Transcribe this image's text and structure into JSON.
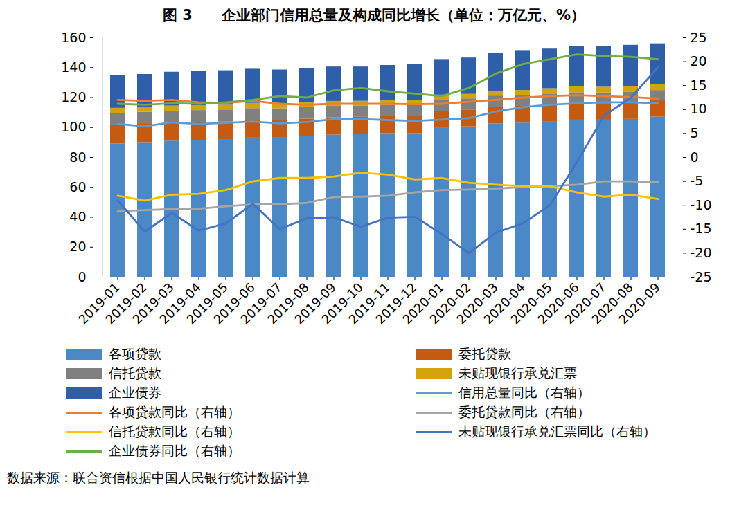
{
  "chart_data": {
    "type": "bar",
    "title": "图 3　　企业部门信用总量及构成同比增长（单位：万亿元、%）",
    "caption": "数据来源：联合资信根据中国人民银行统计数据计算",
    "stacked": true,
    "grid": false,
    "legend": "bottom",
    "categories": [
      "2019-01",
      "2019-02",
      "2019-03",
      "2019-04",
      "2019-05",
      "2019-06",
      "2019-07",
      "2019-08",
      "2019-09",
      "2019-10",
      "2019-11",
      "2019-12",
      "2020-01",
      "2020-02",
      "2020-03",
      "2020-04",
      "2020-05",
      "2020-06",
      "2020-07",
      "2020-08",
      "2020-09"
    ],
    "ylim": [
      0,
      160
    ],
    "yticks": [
      0,
      20,
      40,
      60,
      80,
      100,
      120,
      140,
      160
    ],
    "y2lim": [
      -25,
      25
    ],
    "y2ticks": [
      -25,
      -20,
      -15,
      -10,
      -5,
      0,
      5,
      10,
      15,
      20,
      25
    ],
    "series": [
      {
        "name": "各项贷款",
        "type": "bar",
        "color": "#4a89c5",
        "values": [
          89,
          90,
          91,
          91.5,
          92,
          93,
          93,
          94,
          95,
          95.5,
          96,
          96,
          99.5,
          100.5,
          102.5,
          103,
          104,
          105,
          105,
          105.5,
          107
        ]
      },
      {
        "name": "委托贷款",
        "type": "bar",
        "color": "#c55a11",
        "values": [
          12.3,
          12.2,
          12.1,
          12,
          11.9,
          11.8,
          11.7,
          11.6,
          11.5,
          11.4,
          11.4,
          11.4,
          11.3,
          11.3,
          11.2,
          11.2,
          11.1,
          11.1,
          11.0,
          11.0,
          10.9
        ]
      },
      {
        "name": "信托贷款",
        "type": "bar",
        "color": "#808080",
        "values": [
          8.0,
          8.0,
          7.9,
          7.9,
          7.9,
          7.9,
          7.8,
          7.8,
          7.7,
          7.6,
          7.6,
          7.5,
          7.5,
          7.4,
          7.4,
          7.3,
          7.3,
          7.2,
          7.1,
          7.0,
          6.9
        ]
      },
      {
        "name": "未贴现银行承兑汇票",
        "type": "bar",
        "color": "#d4a20a",
        "values": [
          3.6,
          3.2,
          3.4,
          3.3,
          3.2,
          3.5,
          3.1,
          3.2,
          3.3,
          3.1,
          3.2,
          3.3,
          3.4,
          3.0,
          3.2,
          3.3,
          3.6,
          3.9,
          3.9,
          4.0,
          4.2
        ]
      },
      {
        "name": "企业债券",
        "type": "bar",
        "color": "#2e5fa8",
        "values": [
          22.1,
          22.1,
          22.6,
          22.8,
          23,
          22.8,
          22.9,
          22.9,
          23,
          22.9,
          23.3,
          23.8,
          23.8,
          24.3,
          25.2,
          26.7,
          26.5,
          26.8,
          27,
          27.5,
          27
        ]
      },
      {
        "name": "信用总量同比（右轴）",
        "type": "line",
        "axis": "y2",
        "color": "#5b9bd5",
        "values": [
          7.0,
          6.5,
          7.3,
          7.0,
          7.2,
          7.5,
          7.1,
          7.4,
          8.0,
          8.0,
          7.8,
          7.6,
          7.9,
          8.2,
          9.6,
          10.5,
          11.0,
          11.3,
          11.5,
          11.5,
          11.3
        ]
      },
      {
        "name": "各项贷款同比（右轴）",
        "type": "line",
        "axis": "y2",
        "color": "#ed7d31",
        "values": [
          12.0,
          11.8,
          12.0,
          11.5,
          11.4,
          11.8,
          11.2,
          11.0,
          11.2,
          11.2,
          11.2,
          11.1,
          11.2,
          11.6,
          12.0,
          12.5,
          12.8,
          13.0,
          12.8,
          12.6,
          12.3
        ]
      },
      {
        "name": "委托贷款同比（右轴）",
        "type": "line",
        "axis": "y2",
        "color": "#a5a5a5",
        "values": [
          -11.3,
          -11.0,
          -10.8,
          -10.7,
          -10.2,
          -9.8,
          -9.8,
          -9.5,
          -8.3,
          -8.2,
          -8.0,
          -7.3,
          -6.8,
          -6.7,
          -6.5,
          -6.2,
          -6.0,
          -5.7,
          -5.0,
          -5.0,
          -5.2
        ]
      },
      {
        "name": "信托贷款同比（右轴）",
        "type": "line",
        "axis": "y2",
        "color": "#ffc000",
        "values": [
          -8.0,
          -9.0,
          -7.8,
          -7.6,
          -6.8,
          -5.0,
          -4.3,
          -4.3,
          -4.0,
          -3.2,
          -3.6,
          -4.6,
          -4.3,
          -5.3,
          -5.7,
          -6.0,
          -6.0,
          -7.3,
          -8.2,
          -7.8,
          -8.7
        ]
      },
      {
        "name": "未贴现银行承兑汇票同比（右轴）",
        "type": "line",
        "axis": "y2",
        "color": "#4472c4",
        "values": [
          -9.0,
          -15.5,
          -11.6,
          -15.3,
          -13.8,
          -9.7,
          -15.0,
          -12.7,
          -12.5,
          -14.5,
          -12.6,
          -12.4,
          -16.0,
          -20.0,
          -15.7,
          -13.8,
          -10.0,
          -1.0,
          8.7,
          12.5,
          18.8
        ]
      },
      {
        "name": "企业债券同比（右轴）",
        "type": "line",
        "axis": "y2",
        "color": "#70ad47",
        "values": [
          11.2,
          11.0,
          11.3,
          11.2,
          11.5,
          12.0,
          12.8,
          12.5,
          14.0,
          14.5,
          13.8,
          13.3,
          12.8,
          14.5,
          17.5,
          19.5,
          20.5,
          21.5,
          21.2,
          21.0,
          20.5
        ]
      }
    ]
  }
}
